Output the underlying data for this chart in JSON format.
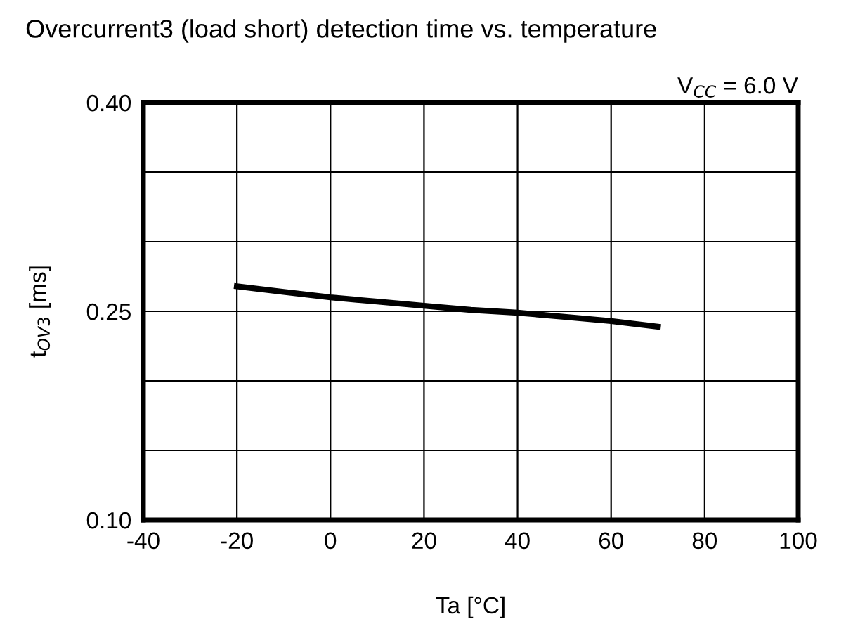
{
  "chart_data": {
    "type": "line",
    "title": "Overcurrent3 (load short) detection time vs. temperature",
    "xlabel": "Ta [°C]",
    "ylabel": "t$_{OV3}$ [ms]",
    "annotations": [
      "V$_{CC}$ = 6.0 V"
    ],
    "x": [
      -20,
      -10,
      0,
      10,
      20,
      30,
      40,
      50,
      60,
      70
    ],
    "series": [
      {
        "color": "#000000",
        "values": [
          0.268,
          0.264,
          0.26,
          0.257,
          0.254,
          0.251,
          0.249,
          0.246,
          0.243,
          0.239
        ]
      }
    ],
    "xlim": [
      -40,
      100
    ],
    "xticks": [
      -40,
      -20,
      0,
      20,
      40,
      60,
      80,
      100
    ],
    "ylim": [
      0.1,
      0.4
    ],
    "yticks": [
      {
        "value": 0.1,
        "label": "0.10"
      },
      {
        "value": 0.15,
        "label": null
      },
      {
        "value": 0.2,
        "label": null
      },
      {
        "value": 0.25,
        "label": "0.25"
      },
      {
        "value": 0.3,
        "label": null
      },
      {
        "value": 0.35,
        "label": null
      },
      {
        "value": 0.4,
        "label": "0.40"
      }
    ],
    "grid": true,
    "marker": "none",
    "line_style": "solid",
    "legend": false
  }
}
